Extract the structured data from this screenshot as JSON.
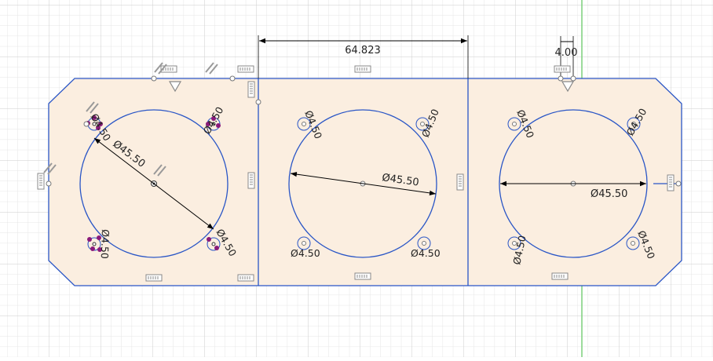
{
  "colors": {
    "grid_minor": "#e3e3e3",
    "grid_major": "#cfcfcf",
    "profile_fill": "#fbeee0",
    "sketch_line": "#2a56c6",
    "dimension_line": "#000000",
    "axis_green": "#7cd07c",
    "constraint_gray": "#888888",
    "selection_purple": "#8a1a7a"
  },
  "dimensions": {
    "width_middle": "64.823",
    "offset_right": "4.00",
    "big_circle_left": "Ø45.50",
    "big_circle_middle": "Ø45.50",
    "big_circle_right": "Ø45.50",
    "hole_label": "Ø4.50"
  },
  "constraint_icons": [
    "horizontal-constraint-icon",
    "vertical-constraint-icon",
    "parallel-constraint-icon",
    "symmetric-constraint-icon"
  ]
}
